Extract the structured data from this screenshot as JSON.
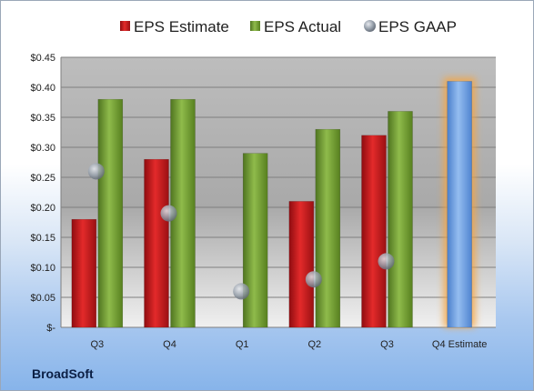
{
  "chart_data": {
    "type": "bar",
    "categories": [
      "Q3",
      "Q4",
      "Q1",
      "Q2",
      "Q3",
      "Q4 Estimate"
    ],
    "series": [
      {
        "name": "EPS Estimate",
        "kind": "bar",
        "color": "#c0161b",
        "values": [
          0.18,
          0.28,
          null,
          0.21,
          0.32,
          null
        ]
      },
      {
        "name": "EPS Actual",
        "kind": "bar",
        "color": "#6e9a2e",
        "values": [
          0.38,
          0.38,
          0.29,
          0.33,
          0.36,
          null
        ]
      },
      {
        "name": "EPS GAAP",
        "kind": "marker",
        "color": "#9aa4b1",
        "values": [
          0.26,
          0.19,
          0.06,
          0.08,
          0.11,
          null
        ]
      }
    ],
    "highlight": {
      "category": "Q4 Estimate",
      "value": 0.41,
      "color": "#6d9ee0",
      "glow": "#f5a542"
    },
    "y_ticks": [
      "$-",
      "$0.05",
      "$0.10",
      "$0.15",
      "$0.20",
      "$0.25",
      "$0.30",
      "$0.35",
      "$0.40",
      "$0.45"
    ],
    "ylim": [
      0,
      0.45
    ],
    "grid": true,
    "legend_position": "top"
  },
  "company": "BroadSoft"
}
